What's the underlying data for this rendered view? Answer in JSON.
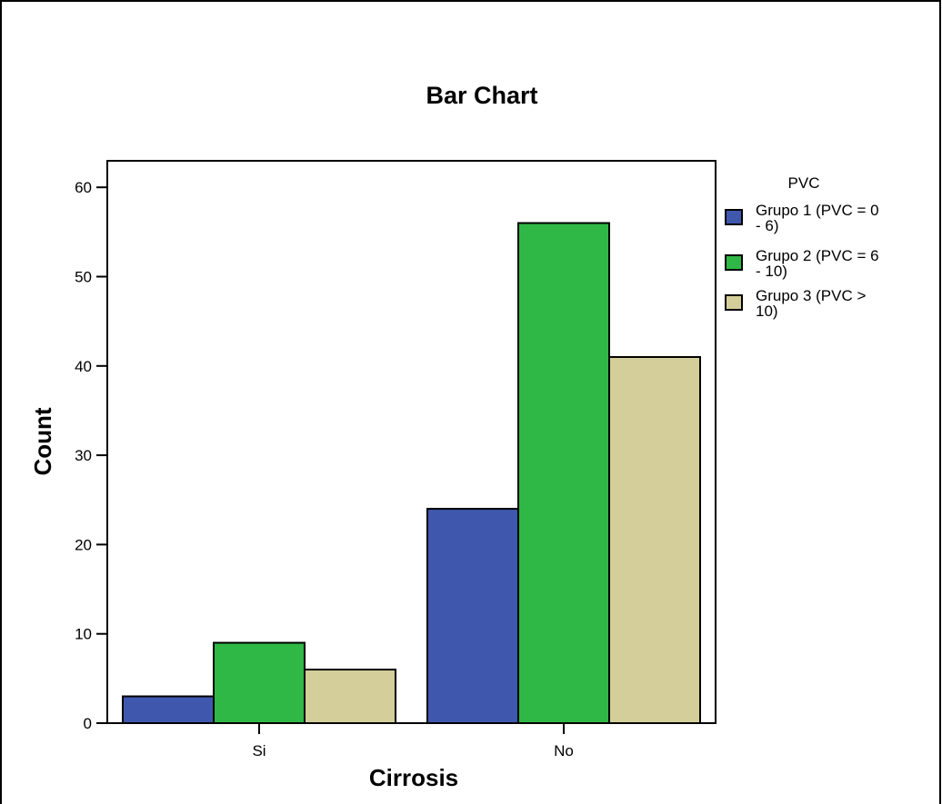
{
  "chart_data": {
    "type": "bar",
    "title": "Bar Chart",
    "xlabel": "Cirrosis",
    "ylabel": "Count",
    "categories": [
      "Si",
      "No"
    ],
    "series": [
      {
        "name": "Grupo 1 (PVC = 0 - 6)",
        "name_lines": [
          "Grupo 1 (PVC = 0",
          "- 6)"
        ],
        "color": "#3f58ae",
        "values": [
          3,
          24
        ]
      },
      {
        "name": "Grupo 2 (PVC = 6 - 10)",
        "name_lines": [
          "Grupo 2 (PVC = 6",
          "- 10)"
        ],
        "color": "#2fb846",
        "values": [
          9,
          56
        ]
      },
      {
        "name": "Grupo 3 (PVC > 10)",
        "name_lines": [
          "Grupo 3 (PVC >",
          "10)"
        ],
        "color": "#d4cf9a",
        "values": [
          6,
          41
        ]
      }
    ],
    "legend_title": "PVC",
    "legend_position": "right",
    "ylim": [
      0,
      63
    ],
    "yticks": [
      0,
      10,
      20,
      30,
      40,
      50,
      60
    ],
    "grid": false
  }
}
